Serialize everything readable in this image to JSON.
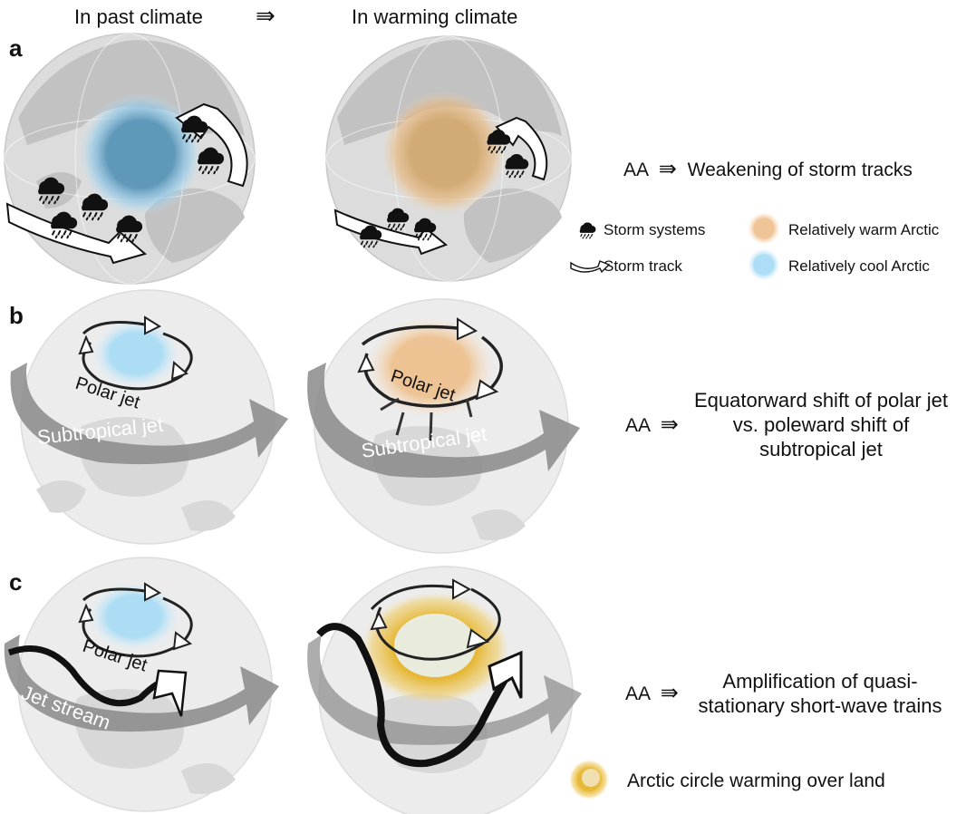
{
  "header": {
    "past": "In past climate",
    "arrow": "⇛",
    "warming": "In warming climate"
  },
  "panels": {
    "a": {
      "letter": "a",
      "aa": "AA",
      "arrow": "⇛",
      "result": "Weakening of storm tracks"
    },
    "b": {
      "letter": "b",
      "aa": "AA",
      "arrow": "⇛",
      "result_line1": "Equatorward shift of polar jet",
      "result_line2": "vs. poleward shift of",
      "result_line3": "subtropical jet",
      "polar_jet": "Polar jet",
      "subtropical_jet": "Subtropical jet"
    },
    "c": {
      "letter": "c",
      "aa": "AA",
      "arrow": "⇛",
      "result_line1": "Amplification of quasi-",
      "result_line2": "stationary short-wave trains",
      "polar_jet": "Polar jet",
      "jet_stream": "Jet stream"
    }
  },
  "legend": {
    "storm_systems": "Storm systems",
    "storm_track": "Storm track",
    "warm_arctic": "Relatively warm Arctic",
    "cool_arctic": "Relatively cool Arctic",
    "arctic_land": "Arctic circle warming over land"
  },
  "colors": {
    "globe": "#d9d9d9",
    "land": "#bdbdbd",
    "cool_dark": "#5a95b8",
    "cool_light": "#a9dcf5",
    "warm": "#e8b679",
    "gold": "#e6b42a",
    "jet_gray": "#8a8a8a"
  }
}
